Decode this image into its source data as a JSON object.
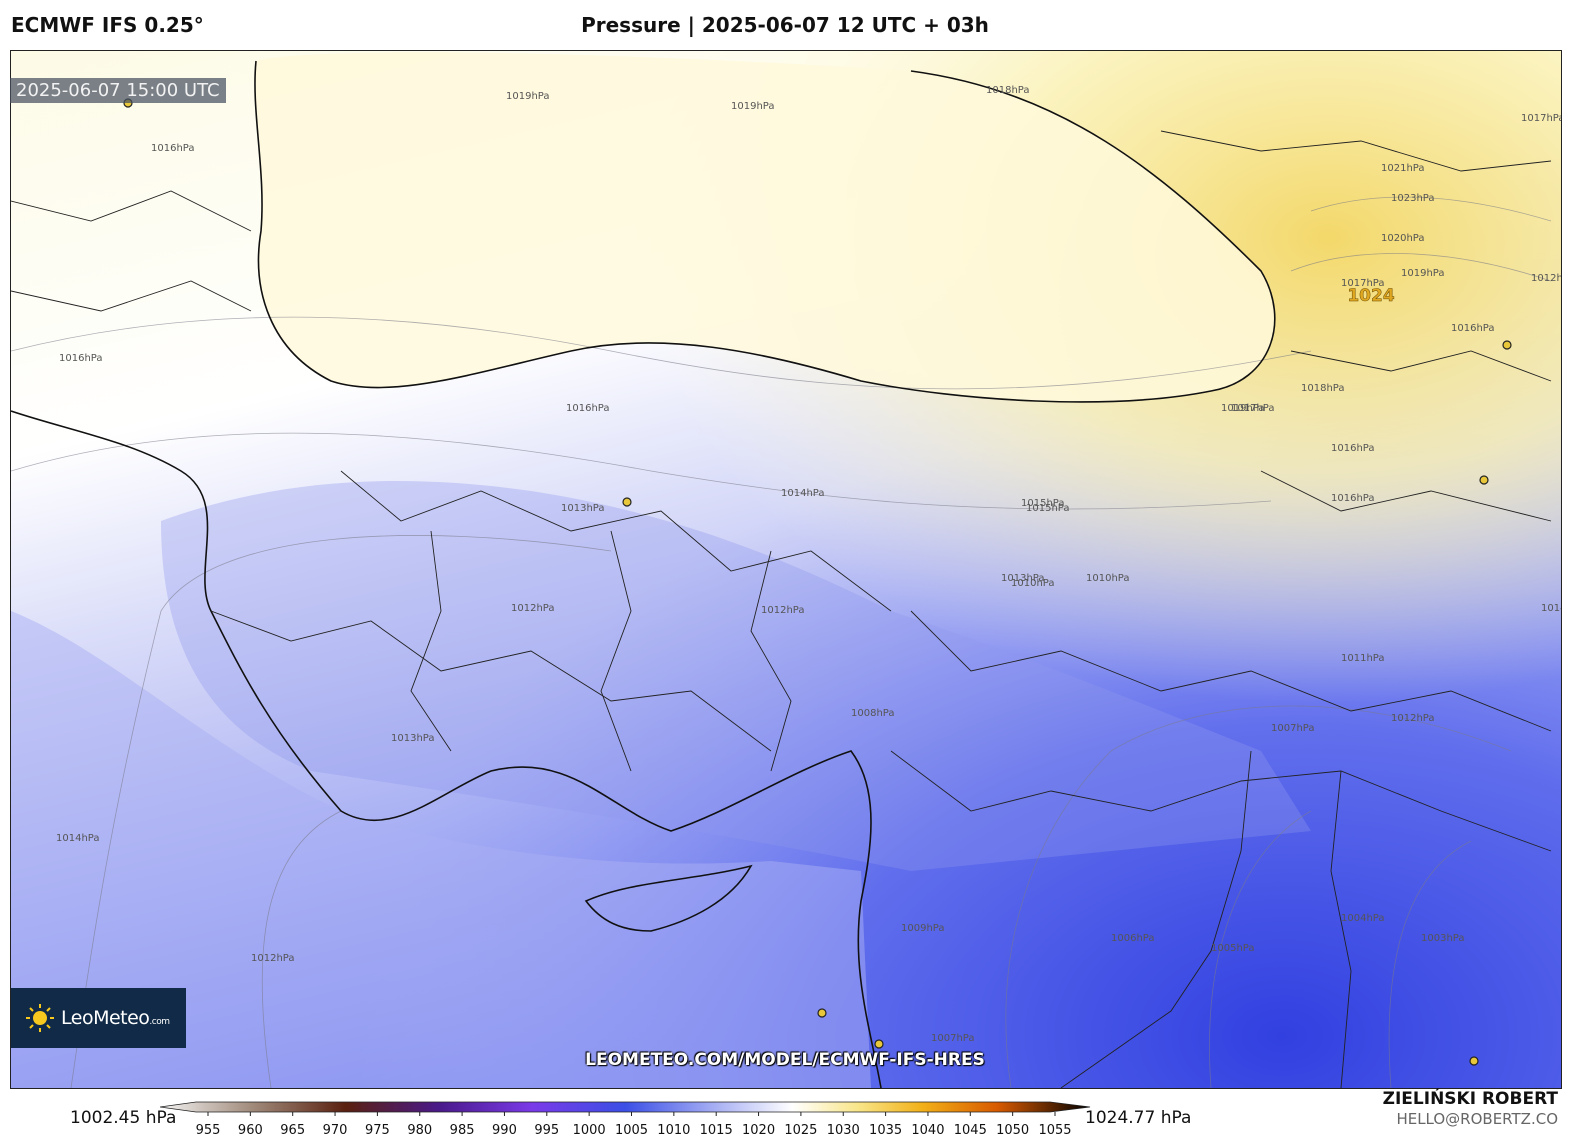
{
  "header": {
    "model": "ECMWF IFS 0.25°",
    "title": "Pressure | 2025-06-07 12 UTC + 03h"
  },
  "map": {
    "timestamp": "2025-06-07 15:00 UTC",
    "center_label": "1024",
    "isobar_labels": [
      "1019hPa",
      "1019hPa",
      "1018hPa",
      "1017hPa",
      "1016hPa",
      "1016hPa",
      "1021hPa",
      "1023hPa",
      "1020hPa",
      "1019hPa",
      "1017hPa",
      "1016hPa",
      "1018hPa",
      "1017hPa",
      "1016hPa",
      "1015hPa",
      "1014hPa",
      "1013hPa",
      "1012hPa",
      "1012hPa",
      "1012hPa",
      "1010hPa",
      "1011hPa",
      "1013hPa",
      "1012hPa",
      "1008hPa",
      "1007hPa",
      "1006hPa",
      "1005hPa",
      "1004hPa",
      "1003hPa",
      "1014hPa",
      "1012hPa",
      "1009hPa",
      "1007hPa",
      "1016hPa",
      "1016hPa",
      "1019hPa",
      "1015hPa",
      "1014hPa",
      "1010hPa",
      "1013hPa"
    ],
    "watermark_url": "LEOMETEO.COM/MODEL/ECMWF-IFS-HRES",
    "colors": {
      "high": "#f6e07a",
      "neutral": "#ffffff",
      "low": "#3e4fe6"
    }
  },
  "logo": {
    "name": "LeoMeteo",
    "suffix": ".com",
    "icon": "sun-icon"
  },
  "colorbar": {
    "min_label": "1002.45 hPa",
    "max_label": "1024.77 hPa",
    "ticks": [
      "955",
      "960",
      "965",
      "970",
      "975",
      "980",
      "985",
      "990",
      "995",
      "1000",
      "1005",
      "1010",
      "1015",
      "1020",
      "1025",
      "1030",
      "1035",
      "1040",
      "1045",
      "1050",
      "1055"
    ]
  },
  "footer": {
    "author": "ZIELIŃSKI ROBERT",
    "email": "HELLO@ROBERTZ.CO"
  }
}
